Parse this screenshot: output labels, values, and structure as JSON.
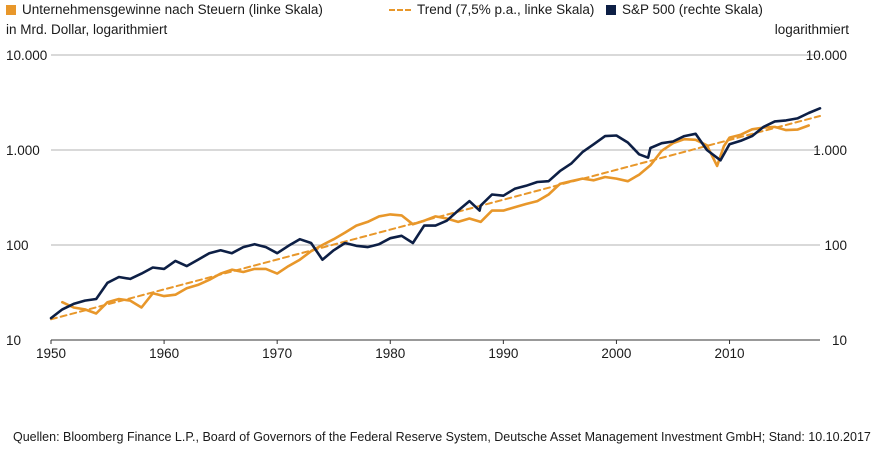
{
  "chart_data": {
    "type": "line",
    "title": "",
    "legend": [
      {
        "label": "Unternehmensgewinne nach Steuern (linke Skala)",
        "color": "#e8972a",
        "style": "square"
      },
      {
        "label": "Trend (7,5% p.a., linke Skala)",
        "color": "#e8972a",
        "style": "dashed"
      },
      {
        "label": "S&P 500 (rechte Skala)",
        "color": "#0d1f45",
        "style": "square"
      }
    ],
    "legend_position": "top",
    "left_axis_label": "in Mrd. Dollar, logarithmiert",
    "right_axis_label": "logarithmiert",
    "y_scale": "log",
    "ylim": [
      10,
      10000
    ],
    "y_ticks": [
      10,
      100,
      1000,
      10000
    ],
    "y_tick_labels": [
      "10",
      "100",
      "1.000",
      "10.000"
    ],
    "xlim": [
      1950,
      2018
    ],
    "x_ticks": [
      1950,
      1960,
      1970,
      1980,
      1990,
      2000,
      2010
    ],
    "x_tick_labels": [
      "1950",
      "1960",
      "1970",
      "1980",
      "1990",
      "2000",
      "2010"
    ],
    "grid": "horizontal",
    "series": [
      {
        "name": "Unternehmensgewinne nach Steuern (linke Skala)",
        "color": "#e8972a",
        "style": "solid",
        "x": [
          1951,
          1952,
          1953,
          1954,
          1955,
          1956,
          1957,
          1958,
          1959,
          1960,
          1961,
          1962,
          1963,
          1964,
          1965,
          1966,
          1967,
          1968,
          1969,
          1970,
          1971,
          1972,
          1973,
          1974,
          1975,
          1976,
          1977,
          1978,
          1979,
          1980,
          1981,
          1982,
          1983,
          1984,
          1985,
          1986,
          1987,
          1988,
          1989,
          1990,
          1991,
          1992,
          1993,
          1994,
          1995,
          1996,
          1997,
          1998,
          1999,
          2000,
          2001,
          2002,
          2003,
          2004,
          2005,
          2006,
          2007,
          2008,
          2008.9,
          2009.5,
          2010,
          2011,
          2012,
          2013,
          2014,
          2015,
          2016,
          2017
        ],
        "values": [
          25,
          22,
          21,
          19,
          25,
          27,
          26,
          22,
          31,
          29,
          30,
          35,
          38,
          43,
          50,
          55,
          52,
          56,
          56,
          50,
          60,
          70,
          86,
          100,
          115,
          135,
          160,
          175,
          200,
          210,
          205,
          165,
          180,
          200,
          190,
          175,
          190,
          175,
          230,
          230,
          250,
          270,
          290,
          340,
          440,
          470,
          500,
          480,
          520,
          500,
          470,
          550,
          690,
          980,
          1180,
          1300,
          1280,
          1120,
          680,
          1100,
          1350,
          1450,
          1650,
          1720,
          1750,
          1620,
          1640,
          1810
        ]
      },
      {
        "name": "Trend (7,5% p.a., linke Skala)",
        "color": "#e8972a",
        "style": "dashed",
        "x": [
          1950,
          2018
        ],
        "values": [
          16.5,
          2280
        ]
      },
      {
        "name": "S&P 500 (rechte Skala)",
        "color": "#0d1f45",
        "style": "solid",
        "x": [
          1950,
          1951,
          1952,
          1953,
          1954,
          1955,
          1956,
          1957,
          1958,
          1959,
          1960,
          1961,
          1962,
          1963,
          1964,
          1965,
          1966,
          1967,
          1968,
          1969,
          1970,
          1971,
          1972,
          1973,
          1974,
          1975,
          1976,
          1977,
          1978,
          1979,
          1980,
          1981,
          1982,
          1983,
          1984,
          1985,
          1986,
          1987,
          1987.9,
          1988,
          1989,
          1990,
          1991,
          1992,
          1993,
          1994,
          1995,
          1996,
          1997,
          1998,
          1999,
          2000,
          2001,
          2002,
          2002.8,
          2003,
          2004,
          2005,
          2006,
          2007,
          2008,
          2009.2,
          2010,
          2011,
          2012,
          2013,
          2014,
          2015,
          2016,
          2017,
          2018
        ],
        "values": [
          17,
          21,
          24,
          26,
          27,
          40,
          46,
          44,
          50,
          58,
          56,
          68,
          60,
          70,
          82,
          88,
          82,
          95,
          102,
          95,
          82,
          98,
          115,
          105,
          70,
          88,
          105,
          98,
          95,
          102,
          118,
          125,
          105,
          160,
          160,
          180,
          230,
          290,
          230,
          260,
          340,
          330,
          390,
          420,
          460,
          470,
          600,
          720,
          950,
          1150,
          1400,
          1420,
          1200,
          900,
          830,
          1050,
          1180,
          1230,
          1400,
          1480,
          1000,
          780,
          1150,
          1250,
          1400,
          1750,
          2000,
          2050,
          2150,
          2450,
          2750
        ]
      }
    ]
  },
  "source": "Quellen: Bloomberg Finance L.P., Board of Governors of the Federal Reserve System, Deutsche Asset Management Investment GmbH; Stand: 10.10.2017"
}
